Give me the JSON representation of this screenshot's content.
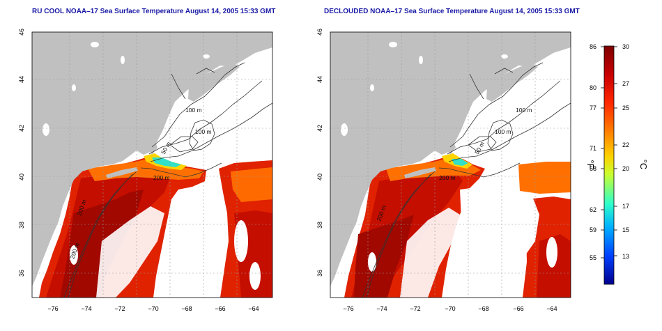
{
  "panels": [
    {
      "title": "RU COOL NOAA–17 Sea Surface Temperature August 14, 2005 15:33 GMT",
      "x_ticks": [
        "−76",
        "−74",
        "−72",
        "−70",
        "−68",
        "−66",
        "−64"
      ],
      "y_ticks": [
        "46",
        "44",
        "42",
        "40",
        "38",
        "36"
      ],
      "contour_labels": [
        "100 m",
        "100 m",
        "50 m",
        "200 m",
        "200 m",
        "200 m"
      ]
    },
    {
      "title": "DECLOUDED NOAA–17 Sea Surface Temperature August 14, 2005 15:33 GMT",
      "x_ticks": [
        "−76",
        "−74",
        "−72",
        "−70",
        "−68",
        "−66",
        "−64"
      ],
      "y_ticks": [
        "46",
        "44",
        "42",
        "40",
        "38",
        "36"
      ],
      "contour_labels": [
        "100 m",
        "100 m",
        "50 m",
        "200 m",
        "200 m"
      ]
    }
  ],
  "colorbar": {
    "f_label": "°F",
    "c_label": "°C",
    "f_ticks": [
      "86",
      "80",
      "77",
      "71",
      "68",
      "62",
      "59",
      "55"
    ],
    "c_ticks": [
      "30",
      "27",
      "25",
      "22",
      "20",
      "17",
      "15",
      "13"
    ],
    "colors": [
      "#7d0000",
      "#c80000",
      "#ff2800",
      "#ff8000",
      "#ffd000",
      "#c8ff30",
      "#30ffc8",
      "#00b0ff",
      "#0040ff",
      "#00008c"
    ]
  },
  "colors": {
    "land": "#c0c0c0",
    "title": "#1a1aa6"
  }
}
